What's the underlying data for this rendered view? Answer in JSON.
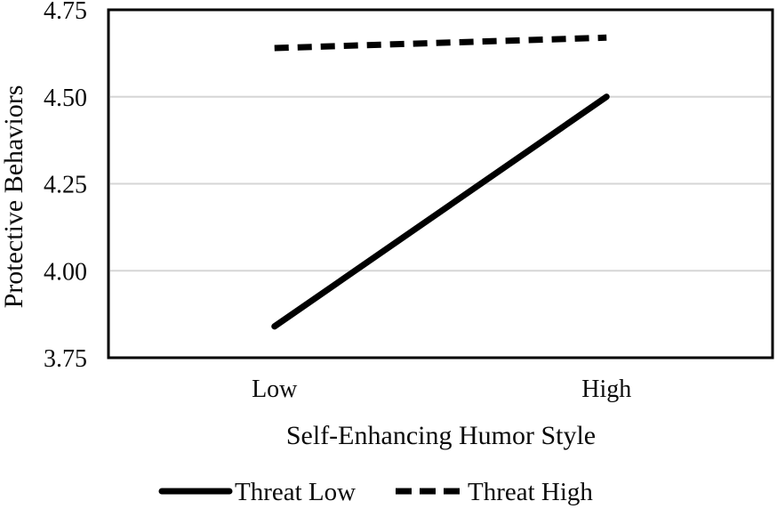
{
  "chart_data": {
    "type": "line",
    "categories": [
      "Low",
      "High"
    ],
    "series": [
      {
        "name": "Threat Low",
        "style": "solid",
        "values": [
          3.84,
          4.5
        ]
      },
      {
        "name": "Threat High",
        "style": "dashed",
        "values": [
          4.64,
          4.67
        ]
      }
    ],
    "title": "",
    "xlabel": "Self-Enhancing Humor Style",
    "ylabel": "Protective Behaviors",
    "ylim": [
      3.75,
      4.75
    ],
    "ytick_labels": [
      "4.75",
      "4.50",
      "4.25",
      "4.00",
      "3.75"
    ],
    "gridline_values": [
      4.5,
      4.25,
      4.0
    ],
    "legend_position": "bottom",
    "grid": true,
    "line_color": "#000000",
    "gridline_color": "#d6d6d6",
    "plot_border_color": "#000000",
    "background_color": "#ffffff"
  }
}
